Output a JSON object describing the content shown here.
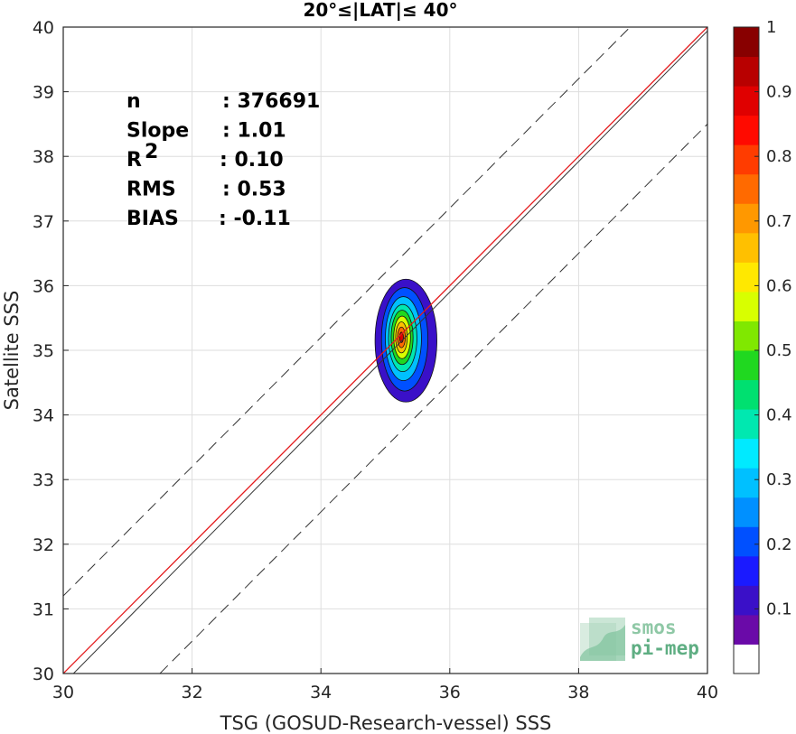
{
  "chart_data": {
    "type": "contour-scatter",
    "title": "20°≤|LAT|≤ 40°",
    "xlabel": "TSG (GOSUD-Research-vessel) SSS",
    "ylabel": "Satellite SSS",
    "xlim": [
      30,
      40
    ],
    "ylim": [
      30,
      40
    ],
    "xticks": [
      30,
      32,
      34,
      36,
      38,
      40
    ],
    "yticks": [
      30,
      31,
      32,
      33,
      34,
      35,
      36,
      37,
      38,
      39,
      40
    ],
    "grid": true,
    "stats": [
      {
        "key": "n",
        "sup": "",
        "value": ": 376691"
      },
      {
        "key": "Slope",
        "sup": "",
        "value": ": 1.01"
      },
      {
        "key": "R",
        "sup": "2",
        "value": ": 0.10"
      },
      {
        "key": "RMS",
        "sup": "",
        "value": ": 0.53"
      },
      {
        "key": "BIAS",
        "sup": "",
        "value": ": -0.11"
      }
    ],
    "lines": {
      "identity": {
        "slope": 1,
        "intercept": 0,
        "color": "#e41a1c"
      },
      "fit": {
        "slope": 1.01,
        "intercept": -0.46,
        "color": "#333333"
      },
      "upper_dashed": {
        "slope": 1,
        "intercept": 1.2
      },
      "lower_dashed": {
        "slope": 1,
        "intercept": -1.5
      }
    },
    "density_peak": {
      "x": 35.25,
      "y": 35.2
    },
    "contours": [
      {
        "level": 0.05,
        "cx": 35.32,
        "cy": 35.15,
        "rx": 0.48,
        "ry": 0.95
      },
      {
        "level": 0.15,
        "cx": 35.3,
        "cy": 35.17,
        "rx": 0.36,
        "ry": 0.8
      },
      {
        "level": 0.25,
        "cx": 35.28,
        "cy": 35.18,
        "rx": 0.28,
        "ry": 0.65
      },
      {
        "level": 0.35,
        "cx": 35.27,
        "cy": 35.19,
        "rx": 0.22,
        "ry": 0.52
      },
      {
        "level": 0.45,
        "cx": 35.26,
        "cy": 35.2,
        "rx": 0.17,
        "ry": 0.42
      },
      {
        "level": 0.55,
        "cx": 35.26,
        "cy": 35.2,
        "rx": 0.13,
        "ry": 0.33
      },
      {
        "level": 0.65,
        "cx": 35.25,
        "cy": 35.2,
        "rx": 0.09,
        "ry": 0.24
      },
      {
        "level": 0.75,
        "cx": 35.25,
        "cy": 35.2,
        "rx": 0.06,
        "ry": 0.16
      },
      {
        "level": 0.9,
        "cx": 35.25,
        "cy": 35.2,
        "rx": 0.03,
        "ry": 0.08
      }
    ],
    "colorbar": {
      "range": [
        0,
        1
      ],
      "ticks": [
        0.1,
        0.2,
        0.3,
        0.4,
        0.5,
        0.6,
        0.7,
        0.8,
        0.9,
        1
      ],
      "tick_labels": [
        "0.1",
        "0.2",
        "0.3",
        "0.4",
        "0.5",
        "0.6",
        "0.7",
        "0.8",
        "0.9",
        "1"
      ],
      "colors": [
        "#ffffff",
        "#6a0aa8",
        "#3a10c8",
        "#1a1aff",
        "#0050ff",
        "#0090ff",
        "#00c0ff",
        "#00eaff",
        "#00e8b0",
        "#00e070",
        "#20d820",
        "#80e800",
        "#d8ff00",
        "#ffe800",
        "#ffc000",
        "#ff9800",
        "#ff6a00",
        "#ff3c00",
        "#ff0a00",
        "#e00000",
        "#b80000",
        "#880000"
      ]
    }
  },
  "logo": {
    "line1": "smos",
    "line2": "pi-mep"
  }
}
